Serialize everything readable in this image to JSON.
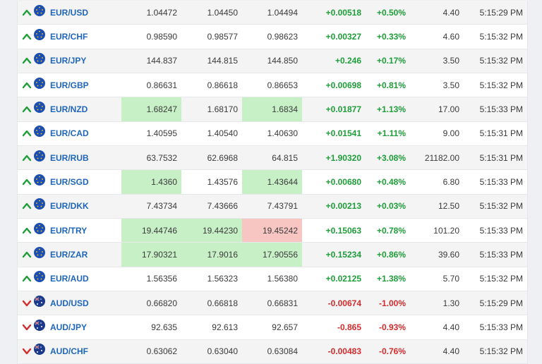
{
  "colors": {
    "up": "#1e9e38",
    "down": "#d42c2c",
    "link": "#1f66b8",
    "flash_up": "#c7f0c6",
    "flash_down": "#f7c6c3"
  },
  "rows": [
    {
      "symbol": "EUR/USD",
      "dir": "up",
      "bid": "1.04472",
      "ask": "1.04450",
      "last": "1.04494",
      "chg": "+0.00518",
      "pct": "+0.50%",
      "vol": "4.40",
      "time": "5:15:29 PM",
      "hl": [
        "",
        "",
        ""
      ]
    },
    {
      "symbol": "EUR/CHF",
      "dir": "up",
      "bid": "0.98590",
      "ask": "0.98577",
      "last": "0.98623",
      "chg": "+0.00327",
      "pct": "+0.33%",
      "vol": "4.60",
      "time": "5:15:32 PM",
      "hl": [
        "",
        "",
        ""
      ]
    },
    {
      "symbol": "EUR/JPY",
      "dir": "up",
      "bid": "144.837",
      "ask": "144.815",
      "last": "144.850",
      "chg": "+0.246",
      "pct": "+0.17%",
      "vol": "3.50",
      "time": "5:15:32 PM",
      "hl": [
        "",
        "",
        ""
      ]
    },
    {
      "symbol": "EUR/GBP",
      "dir": "up",
      "bid": "0.86631",
      "ask": "0.86618",
      "last": "0.86653",
      "chg": "+0.00698",
      "pct": "+0.81%",
      "vol": "3.50",
      "time": "5:15:32 PM",
      "hl": [
        "",
        "",
        ""
      ]
    },
    {
      "symbol": "EUR/NZD",
      "dir": "up",
      "bid": "1.68247",
      "ask": "1.68170",
      "last": "1.6834",
      "chg": "+0.01877",
      "pct": "+1.13%",
      "vol": "17.00",
      "time": "5:15:33 PM",
      "hl": [
        "green",
        "",
        "green"
      ]
    },
    {
      "symbol": "EUR/CAD",
      "dir": "up",
      "bid": "1.40595",
      "ask": "1.40540",
      "last": "1.40630",
      "chg": "+0.01541",
      "pct": "+1.11%",
      "vol": "9.00",
      "time": "5:15:31 PM",
      "hl": [
        "",
        "",
        ""
      ]
    },
    {
      "symbol": "EUR/RUB",
      "dir": "up",
      "bid": "63.7532",
      "ask": "62.6968",
      "last": "64.815",
      "chg": "+1.90320",
      "pct": "+3.08%",
      "vol": "21182.00",
      "time": "5:15:31 PM",
      "hl": [
        "",
        "",
        ""
      ]
    },
    {
      "symbol": "EUR/SGD",
      "dir": "up",
      "bid": "1.4360",
      "ask": "1.43576",
      "last": "1.43644",
      "chg": "+0.00680",
      "pct": "+0.48%",
      "vol": "6.80",
      "time": "5:15:33 PM",
      "hl": [
        "green",
        "",
        "green"
      ]
    },
    {
      "symbol": "EUR/DKK",
      "dir": "up",
      "bid": "7.43734",
      "ask": "7.43666",
      "last": "7.43791",
      "chg": "+0.00213",
      "pct": "+0.03%",
      "vol": "12.50",
      "time": "5:15:32 PM",
      "hl": [
        "",
        "",
        ""
      ]
    },
    {
      "symbol": "EUR/TRY",
      "dir": "up",
      "bid": "19.44746",
      "ask": "19.44230",
      "last": "19.45242",
      "chg": "+0.15063",
      "pct": "+0.78%",
      "vol": "101.20",
      "time": "5:15:33 PM",
      "hl": [
        "green",
        "green",
        "red"
      ]
    },
    {
      "symbol": "EUR/ZAR",
      "dir": "up",
      "bid": "17.90321",
      "ask": "17.9016",
      "last": "17.90556",
      "chg": "+0.15234",
      "pct": "+0.86%",
      "vol": "39.60",
      "time": "5:15:33 PM",
      "hl": [
        "green",
        "green",
        "green"
      ]
    },
    {
      "symbol": "EUR/AUD",
      "dir": "up",
      "bid": "1.56356",
      "ask": "1.56323",
      "last": "1.56380",
      "chg": "+0.02125",
      "pct": "+1.38%",
      "vol": "5.70",
      "time": "5:15:32 PM",
      "hl": [
        "",
        "",
        ""
      ]
    },
    {
      "symbol": "AUD/USD",
      "dir": "down",
      "bid": "0.66820",
      "ask": "0.66818",
      "last": "0.66831",
      "chg": "-0.00674",
      "pct": "-1.00%",
      "vol": "1.30",
      "time": "5:15:29 PM",
      "hl": [
        "",
        "",
        ""
      ]
    },
    {
      "symbol": "AUD/JPY",
      "dir": "down",
      "bid": "92.635",
      "ask": "92.613",
      "last": "92.657",
      "chg": "-0.865",
      "pct": "-0.93%",
      "vol": "4.40",
      "time": "5:15:33 PM",
      "hl": [
        "",
        "",
        ""
      ]
    },
    {
      "symbol": "AUD/CHF",
      "dir": "down",
      "bid": "0.63062",
      "ask": "0.63040",
      "last": "0.63084",
      "chg": "-0.00483",
      "pct": "-0.76%",
      "vol": "4.40",
      "time": "5:15:32 PM",
      "hl": [
        "",
        "",
        ""
      ]
    }
  ]
}
